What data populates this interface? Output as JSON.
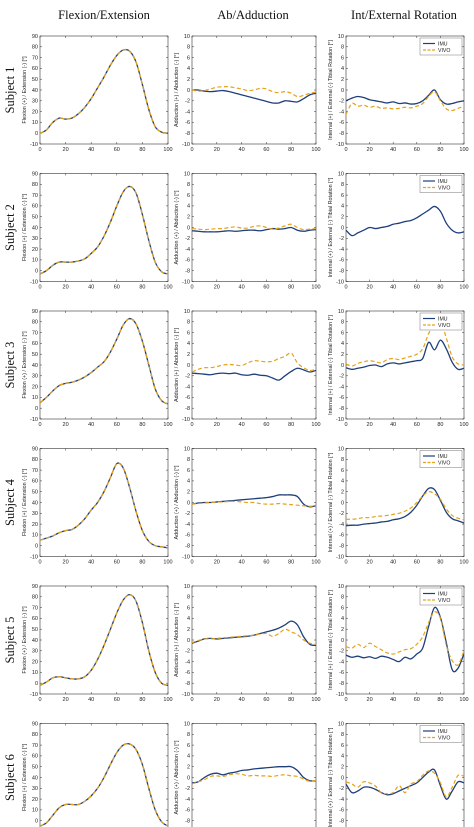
{
  "columns": [
    "Flexion/Extension",
    "Ab/Adduction",
    "Int/External Rotation"
  ],
  "subjects": [
    "Subject 1",
    "Subject 2",
    "Subject 3",
    "Subject 4",
    "Subject 5",
    "Subject 6"
  ],
  "xlabel": "% of cycle",
  "ylabels": [
    "Flexion (+) / Extension (-) [°]",
    "Adduction (+) / Abduction (-) [°]",
    "Internal (+) / External (-) Tibial Rotation [°]"
  ],
  "colors": {
    "IMU": "#1f3f7a",
    "VIVO": "#e5a21a"
  },
  "chart_data": [
    {
      "type": "line",
      "title": "Flexion/Extension",
      "xlim": [
        0,
        100
      ],
      "ylim": [
        -10,
        90
      ],
      "xticks": [
        0,
        20,
        40,
        60,
        80,
        100
      ],
      "yticks": [
        -10,
        0,
        10,
        20,
        30,
        40,
        50,
        60,
        70,
        80,
        90
      ],
      "x": [
        0,
        5,
        10,
        15,
        20,
        25,
        30,
        35,
        40,
        45,
        50,
        55,
        60,
        65,
        70,
        75,
        80,
        85,
        90,
        95,
        100
      ],
      "legend": false,
      "subjects": [
        {
          "IMU": [
            0,
            3,
            10,
            14,
            13,
            14,
            18,
            24,
            32,
            42,
            52,
            63,
            72,
            77,
            76,
            66,
            45,
            22,
            6,
            1,
            0
          ],
          "VIVO": [
            0,
            3,
            10,
            14,
            13,
            14,
            18,
            24,
            32,
            42,
            52,
            63,
            72,
            77,
            76,
            66,
            45,
            22,
            6,
            1,
            0
          ]
        },
        {
          "IMU": [
            -3,
            0,
            5,
            8,
            8,
            8,
            9,
            11,
            16,
            22,
            32,
            45,
            60,
            73,
            78,
            72,
            52,
            28,
            8,
            -1,
            -3
          ],
          "VIVO": [
            -3,
            0,
            5,
            8,
            8,
            8,
            9,
            11,
            16,
            22,
            32,
            45,
            60,
            73,
            78,
            72,
            52,
            28,
            8,
            -1,
            -3
          ]
        },
        {
          "IMU": [
            5,
            10,
            16,
            21,
            23,
            24,
            26,
            29,
            33,
            38,
            43,
            52,
            64,
            77,
            83,
            78,
            62,
            40,
            18,
            7,
            4
          ],
          "VIVO": [
            5,
            10,
            16,
            21,
            23,
            24,
            26,
            29,
            33,
            38,
            43,
            52,
            64,
            77,
            83,
            78,
            62,
            40,
            18,
            7,
            4
          ]
        },
        {
          "IMU": [
            5,
            7,
            9,
            12,
            14,
            15,
            19,
            25,
            33,
            40,
            50,
            63,
            76,
            72,
            54,
            32,
            14,
            4,
            0,
            -1,
            -2
          ],
          "VIVO": [
            5,
            7,
            9,
            12,
            14,
            15,
            19,
            25,
            33,
            40,
            50,
            63,
            76,
            72,
            54,
            32,
            14,
            4,
            0,
            -1,
            -2
          ]
        },
        {
          "IMU": [
            -2,
            1,
            5,
            6,
            5,
            4,
            4,
            6,
            12,
            22,
            35,
            50,
            65,
            77,
            82,
            76,
            56,
            30,
            10,
            0,
            -2
          ],
          "VIVO": [
            -2,
            1,
            5,
            6,
            5,
            4,
            4,
            6,
            12,
            22,
            35,
            50,
            65,
            77,
            82,
            76,
            56,
            30,
            10,
            0,
            -2
          ]
        },
        {
          "IMU": [
            -5,
            -2,
            5,
            12,
            15,
            15,
            15,
            18,
            23,
            30,
            40,
            52,
            63,
            70,
            71,
            66,
            52,
            30,
            10,
            -1,
            -5
          ],
          "VIVO": [
            -5,
            -2,
            5,
            12,
            15,
            15,
            15,
            18,
            23,
            30,
            40,
            52,
            63,
            70,
            71,
            66,
            52,
            30,
            10,
            -1,
            -5
          ]
        }
      ]
    },
    {
      "type": "line",
      "title": "Ab/Adduction",
      "xlim": [
        0,
        100
      ],
      "ylim": [
        -10,
        10
      ],
      "xticks": [
        0,
        20,
        40,
        60,
        80,
        100
      ],
      "yticks": [
        -10,
        -8,
        -6,
        -4,
        -2,
        0,
        2,
        4,
        6,
        8,
        10
      ],
      "x": [
        0,
        5,
        10,
        15,
        20,
        25,
        30,
        35,
        40,
        45,
        50,
        55,
        60,
        65,
        70,
        75,
        80,
        85,
        90,
        95,
        100
      ],
      "legend": false,
      "subjects": [
        {
          "IMU": [
            0,
            0,
            -0.2,
            -0.3,
            -0.2,
            -0.1,
            -0.3,
            -0.6,
            -0.9,
            -1.2,
            -1.5,
            -1.8,
            -2.1,
            -2.4,
            -2.4,
            -2.0,
            -2.1,
            -2.2,
            -1.6,
            -0.9,
            -0.6
          ],
          "VIVO": [
            0,
            -0.2,
            -0.1,
            0.2,
            0.5,
            0.6,
            0.6,
            0.4,
            0.2,
            -0.1,
            0,
            0.3,
            0.2,
            -0.3,
            -0.5,
            -0.3,
            -0.6,
            -1.2,
            -1.0,
            -0.6,
            -0.4
          ]
        },
        {
          "IMU": [
            -0.6,
            -0.7,
            -0.8,
            -0.8,
            -0.8,
            -0.7,
            -0.6,
            -0.7,
            -0.6,
            -0.5,
            -0.5,
            -0.6,
            -0.4,
            -0.2,
            -0.3,
            -0.2,
            0,
            -0.5,
            -0.7,
            -0.5,
            -0.4
          ],
          "VIVO": [
            -0.2,
            -0.3,
            -0.4,
            -0.3,
            -0.2,
            -0.2,
            0,
            0.1,
            -0.1,
            -0.1,
            0.2,
            0.3,
            0,
            -0.3,
            -0.1,
            0.3,
            0.6,
            0,
            -0.4,
            -0.3,
            -0.2
          ]
        },
        {
          "IMU": [
            -1.5,
            -1.6,
            -1.7,
            -1.8,
            -1.6,
            -1.5,
            -1.6,
            -1.5,
            -1.8,
            -1.9,
            -1.7,
            -1.9,
            -2.0,
            -2.4,
            -2.8,
            -2.0,
            -1.2,
            -0.6,
            -0.9,
            -1.3,
            -1.0
          ],
          "VIVO": [
            -1.3,
            -0.8,
            -0.5,
            -0.5,
            -0.3,
            0,
            0.1,
            0,
            -0.1,
            0.4,
            0.8,
            0.7,
            0.6,
            0.7,
            1.2,
            1.6,
            2.2,
            0.4,
            -0.5,
            -1.0,
            -0.8
          ]
        },
        {
          "IMU": [
            -0.3,
            -0.1,
            0,
            0,
            0.1,
            0.2,
            0.3,
            0.4,
            0.5,
            0.6,
            0.7,
            0.8,
            0.9,
            1.1,
            1.4,
            1.4,
            1.4,
            1.1,
            -0.3,
            -0.8,
            -0.6
          ],
          "VIVO": [
            -0.3,
            -0.2,
            -0.1,
            0,
            0.1,
            0.1,
            0.2,
            0.2,
            0.1,
            0,
            0,
            -0.2,
            -0.3,
            -0.3,
            -0.2,
            -0.3,
            -0.4,
            -0.5,
            -0.6,
            -0.7,
            -0.6
          ]
        },
        {
          "IMU": [
            -0.6,
            -0.2,
            0.2,
            0.3,
            0.2,
            0.3,
            0.4,
            0.5,
            0.6,
            0.7,
            0.9,
            1.2,
            1.5,
            1.8,
            2.2,
            2.8,
            3.5,
            2.8,
            0.6,
            -0.8,
            -1.0
          ],
          "VIVO": [
            -0.5,
            -0.1,
            0.2,
            0.2,
            0.3,
            0.4,
            0.5,
            0.6,
            0.7,
            0.8,
            0.9,
            1.1,
            1.2,
            0.7,
            1.2,
            2.0,
            1.5,
            1.0,
            0,
            -0.6,
            -0.8
          ]
        },
        {
          "IMU": [
            -1.0,
            -0.8,
            0,
            0.6,
            0.8,
            0.5,
            0.8,
            1.0,
            1.3,
            1.4,
            1.6,
            1.7,
            1.8,
            1.9,
            2.0,
            2.0,
            2.0,
            1.3,
            0,
            -0.6,
            -0.6
          ],
          "VIVO": [
            -1.2,
            -0.8,
            -0.4,
            0.2,
            0.3,
            0.2,
            0.5,
            0.7,
            0.6,
            0.3,
            0.4,
            0.3,
            0.3,
            0.2,
            0.4,
            0.5,
            0.3,
            0.2,
            -0.3,
            -0.7,
            -0.5
          ]
        }
      ]
    },
    {
      "type": "line",
      "title": "Int/External Rotation",
      "xlim": [
        0,
        100
      ],
      "ylim": [
        -10,
        10
      ],
      "xticks": [
        0,
        20,
        40,
        60,
        80,
        100
      ],
      "yticks": [
        -10,
        -8,
        -6,
        -4,
        -2,
        0,
        2,
        4,
        6,
        8,
        10
      ],
      "x": [
        0,
        5,
        10,
        15,
        20,
        25,
        30,
        35,
        40,
        45,
        50,
        55,
        60,
        65,
        70,
        75,
        80,
        85,
        90,
        95,
        100
      ],
      "legend": [
        true,
        true,
        true,
        true,
        true,
        true
      ],
      "legend_position": "top-right",
      "subjects": [
        {
          "IMU": [
            -2.0,
            -1.5,
            -1.2,
            -1.4,
            -1.8,
            -2.0,
            -2.2,
            -2.4,
            -2.2,
            -2.5,
            -2.4,
            -2.6,
            -2.5,
            -2.0,
            -1.0,
            0,
            -1.8,
            -2.6,
            -2.5,
            -2.2,
            -2.0
          ],
          "VIVO": [
            -4.5,
            -2.5,
            -3.0,
            -2.8,
            -3.2,
            -3.0,
            -3.4,
            -3.3,
            -3.5,
            -3.4,
            -3.2,
            -3.3,
            -3.0,
            -2.5,
            -1.2,
            -0.3,
            -2.0,
            -3.5,
            -3.8,
            -3.4,
            -3.0
          ]
        },
        {
          "IMU": [
            -0.5,
            -1.5,
            -1.0,
            -0.5,
            0,
            -0.2,
            0,
            0.2,
            0.6,
            0.8,
            1.1,
            1.3,
            1.8,
            2.5,
            3.2,
            3.9,
            3.0,
            0.8,
            -0.5,
            -1.0,
            -0.8
          ]
        },
        {
          "IMU": [
            -0.5,
            -0.8,
            -0.6,
            -0.4,
            -0.1,
            0,
            -0.3,
            0.2,
            0.4,
            0.2,
            0.4,
            0.6,
            0.8,
            1.2,
            4.2,
            2.8,
            4.6,
            3.0,
            0.5,
            -0.8,
            -0.6
          ],
          "VIVO": [
            0.2,
            -0.2,
            0.3,
            0.6,
            0.8,
            0.6,
            0.4,
            1.0,
            1.2,
            1.0,
            1.3,
            1.6,
            2.0,
            3.0,
            5.8,
            7.6,
            8.2,
            5.0,
            1.5,
            0.2,
            0
          ]
        },
        {
          "IMU": [
            -4.3,
            -4.2,
            -4.2,
            -4.0,
            -3.9,
            -3.8,
            -3.6,
            -3.5,
            -3.2,
            -3.0,
            -2.6,
            -1.8,
            -0.5,
            1.2,
            2.6,
            2.4,
            0.4,
            -1.8,
            -3.0,
            -3.4,
            -3.8
          ],
          "VIVO": [
            -3.1,
            -3.1,
            -3.0,
            -2.8,
            -2.8,
            -2.6,
            -2.5,
            -2.4,
            -2.2,
            -2.0,
            -1.6,
            -1.0,
            0,
            1.2,
            2.0,
            1.6,
            0.6,
            -1.2,
            -2.4,
            -2.9,
            -3.2
          ]
        },
        {
          "IMU": [
            -2.8,
            -3.2,
            -3.0,
            -3.3,
            -3.1,
            -3.4,
            -3.0,
            -3.2,
            -3.6,
            -4.0,
            -3.2,
            -3.5,
            -2.6,
            -1.5,
            2.5,
            6.0,
            4.2,
            -0.5,
            -5.5,
            -5.2,
            -2.5
          ],
          "VIVO": [
            -1.2,
            -1.5,
            -0.8,
            -1.4,
            -0.6,
            -1.2,
            -1.8,
            -2.4,
            -2.6,
            -2.2,
            -1.8,
            -1.6,
            -0.8,
            0.6,
            3.2,
            5.2,
            4.0,
            -1.0,
            -3.8,
            -4.6,
            -2.0
          ]
        },
        {
          "IMU": [
            -1.2,
            -2.8,
            -2.5,
            -1.8,
            -1.8,
            -2.2,
            -2.8,
            -3.2,
            -3.0,
            -2.5,
            -2.0,
            -1.5,
            -1.0,
            0,
            1.0,
            1.4,
            -1.5,
            -4.0,
            -2.5,
            -0.8,
            -1.0
          ],
          "VIVO": [
            -0.8,
            -1.2,
            -1.8,
            -0.8,
            -1.0,
            -1.6,
            -2.8,
            -3.0,
            -2.8,
            -1.5,
            -2.8,
            -1.2,
            -0.8,
            0.4,
            1.2,
            0.8,
            -1.0,
            -3.6,
            -1.8,
            0.4,
            0.2
          ]
        }
      ]
    }
  ]
}
